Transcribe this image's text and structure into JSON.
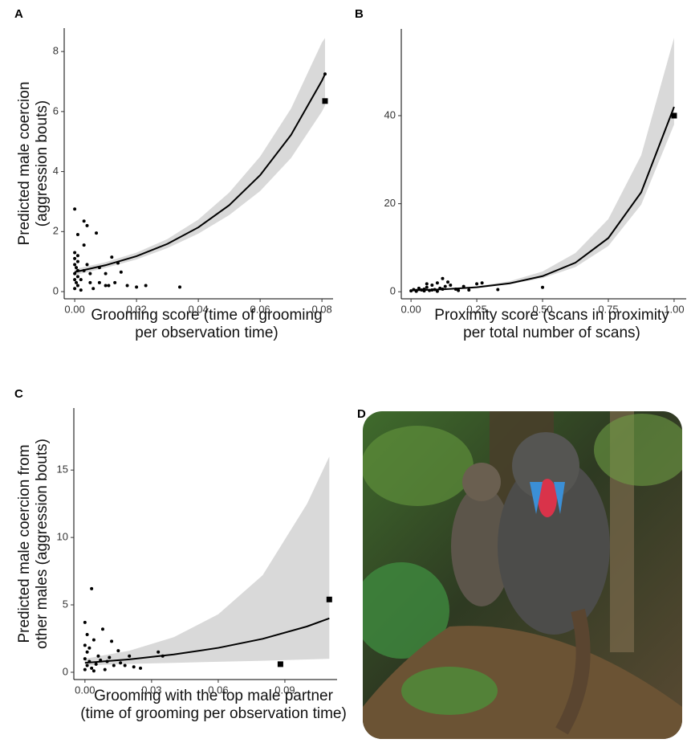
{
  "chart_data": [
    {
      "type": "scatter",
      "panel_label": "A",
      "y_label": [
        "Predicted male coercion",
        "(aggression bouts)"
      ],
      "x_label": [
        "Grooming score (time of grooming",
        "per observation time)"
      ],
      "xlim": [
        -0.0034,
        0.0836
      ],
      "ylim": [
        -0.24,
        8.78
      ],
      "xticks": [
        {
          "value": 0,
          "label": "0.00"
        },
        {
          "value": 0.02,
          "label": "0.02"
        },
        {
          "value": 0.04,
          "label": "0.04"
        },
        {
          "value": 0.06,
          "label": "0.06"
        },
        {
          "value": 0.08,
          "label": "0.08"
        }
      ],
      "yticks": [
        0,
        2,
        4,
        6,
        8
      ],
      "points": {
        "x": [
          0,
          0.001,
          0,
          0.001,
          0,
          0.001,
          0,
          0.0005,
          0.001,
          0,
          0.001,
          0,
          0.0005,
          0.001,
          0,
          0.002,
          0.003,
          0.004,
          0.003,
          0.004,
          0.005,
          0.006,
          0.007,
          0.008,
          0.01,
          0.011,
          0.012,
          0.013,
          0.014,
          0.015,
          0.017,
          0.02,
          0.023,
          0.034,
          0.081,
          0.002,
          0.003,
          0.005,
          0.008,
          0.01
        ],
        "y": [
          2.75,
          1.9,
          1.3,
          1.2,
          1.1,
          1.0,
          0.9,
          0.8,
          0.7,
          0.6,
          0.5,
          0.4,
          0.3,
          0.2,
          0.1,
          0.05,
          2.35,
          2.2,
          1.55,
          0.9,
          0.6,
          0.1,
          1.95,
          0.3,
          0.6,
          0.2,
          1.15,
          0.3,
          0.95,
          0.65,
          0.2,
          0.15,
          0.2,
          0.15,
          7.25,
          0.4,
          0.7,
          0.3,
          0.8,
          0.2
        ]
      },
      "fit": {
        "x": [
          0,
          0.01,
          0.02,
          0.03,
          0.04,
          0.05,
          0.06,
          0.07,
          0.08,
          0.081
        ],
        "y": [
          0.65,
          0.88,
          1.18,
          1.59,
          2.14,
          2.88,
          3.88,
          5.22,
          7.03,
          7.25
        ],
        "upper": [
          0.75,
          0.98,
          1.3,
          1.75,
          2.4,
          3.3,
          4.5,
          6.1,
          8.3,
          8.45
        ],
        "lower": [
          0.55,
          0.79,
          1.07,
          1.45,
          1.93,
          2.55,
          3.35,
          4.45,
          6.0,
          6.2
        ]
      },
      "highlight": {
        "x": [
          0.081
        ],
        "y": [
          6.35
        ]
      }
    },
    {
      "type": "scatter",
      "panel_label": "B",
      "y_label": [],
      "x_label": [
        "Proximity score (scans in proximity",
        "per total number of scans)"
      ],
      "xlim": [
        -0.037,
        1.046
      ],
      "ylim": [
        -1.6,
        59.7
      ],
      "xticks": [
        {
          "value": 0,
          "label": "0.00"
        },
        {
          "value": 0.25,
          "label": "0.25"
        },
        {
          "value": 0.5,
          "label": "0.50"
        },
        {
          "value": 0.75,
          "label": "0.75"
        },
        {
          "value": 1,
          "label": "1.00"
        }
      ],
      "yticks": [
        0,
        20,
        40
      ],
      "points": {
        "x": [
          0,
          0.01,
          0.02,
          0.03,
          0.04,
          0.05,
          0.06,
          0.07,
          0.08,
          0.09,
          0.1,
          0.11,
          0.12,
          0.13,
          0.15,
          0.17,
          0.2,
          0.22,
          0.25,
          0.27,
          0.33,
          0.5,
          0.02,
          0.05,
          0.08,
          0.1,
          0.12,
          0.14,
          0.18,
          0.06
        ],
        "y": [
          0.2,
          0.5,
          0.3,
          0.8,
          0.4,
          0.6,
          1.0,
          0.3,
          1.5,
          0.5,
          2.0,
          0.8,
          3.0,
          1.2,
          1.5,
          0.6,
          1.2,
          0.4,
          1.8,
          2.0,
          0.5,
          1.0,
          0.1,
          0.2,
          0.4,
          0.1,
          0.6,
          2.2,
          0.3,
          1.8
        ]
      },
      "fit": {
        "x": [
          0,
          0.125,
          0.25,
          0.375,
          0.5,
          0.625,
          0.75,
          0.875,
          1.0
        ],
        "y": [
          0.3,
          0.56,
          1.03,
          1.91,
          3.55,
          6.6,
          12.2,
          22.6,
          42
        ],
        "upper": [
          0.35,
          0.65,
          1.25,
          2.4,
          4.6,
          8.8,
          16.5,
          31,
          57.7
        ],
        "lower": [
          0.27,
          0.5,
          0.95,
          1.7,
          3.1,
          5.6,
          10.4,
          19.8,
          38
        ]
      },
      "highlight": {
        "x": [
          1.0
        ],
        "y": [
          40
        ]
      }
    },
    {
      "type": "scatter",
      "panel_label": "C",
      "y_label": [
        "Predicted male coercion from",
        "other males (aggression bouts)"
      ],
      "x_label": [
        "Grooming with the top male partner",
        "(time of grooming per observation time)"
      ],
      "xlim": [
        -0.005,
        0.1135
      ],
      "ylim": [
        -0.54,
        19.6
      ],
      "xticks": [
        {
          "value": 0,
          "label": "0.00"
        },
        {
          "value": 0.03,
          "label": "0.03"
        },
        {
          "value": 0.06,
          "label": "0.06"
        },
        {
          "value": 0.09,
          "label": "0.09"
        }
      ],
      "yticks": [
        0,
        5,
        10,
        15
      ],
      "points": {
        "x": [
          0.003,
          0,
          0.001,
          0.004,
          0.008,
          0.012,
          0.015,
          0.02,
          0.033,
          0.035,
          0.002,
          0.006,
          0.01,
          0.018,
          0.022,
          0.025,
          0,
          0.001,
          0,
          0.002,
          0.001,
          0,
          0.003,
          0.005,
          0.007,
          0.009,
          0.011,
          0.013,
          0.016,
          0.004
        ],
        "y": [
          6.2,
          3.7,
          2.8,
          2.4,
          3.2,
          2.3,
          1.6,
          1.2,
          1.5,
          1.2,
          1.8,
          1.2,
          0.8,
          0.5,
          0.4,
          0.3,
          0.2,
          0.5,
          1.0,
          0.8,
          1.5,
          2.0,
          0.3,
          0.6,
          0.9,
          0.2,
          1.1,
          0.5,
          0.7,
          0.1
        ]
      },
      "fit": {
        "x": [
          0,
          0.02,
          0.04,
          0.06,
          0.08,
          0.1,
          0.11
        ],
        "y": [
          0.7,
          0.96,
          1.32,
          1.81,
          2.48,
          3.4,
          4.0
        ],
        "upper": [
          1.0,
          1.6,
          2.6,
          4.3,
          7.2,
          12.5,
          16.0
        ],
        "lower": [
          0.5,
          0.62,
          0.7,
          0.78,
          0.85,
          0.95,
          1.0
        ]
      },
      "highlight": {
        "x": [
          0.088,
          0.11
        ],
        "y": [
          0.6,
          5.4
        ]
      }
    }
  ],
  "photo_panel_label": "D"
}
